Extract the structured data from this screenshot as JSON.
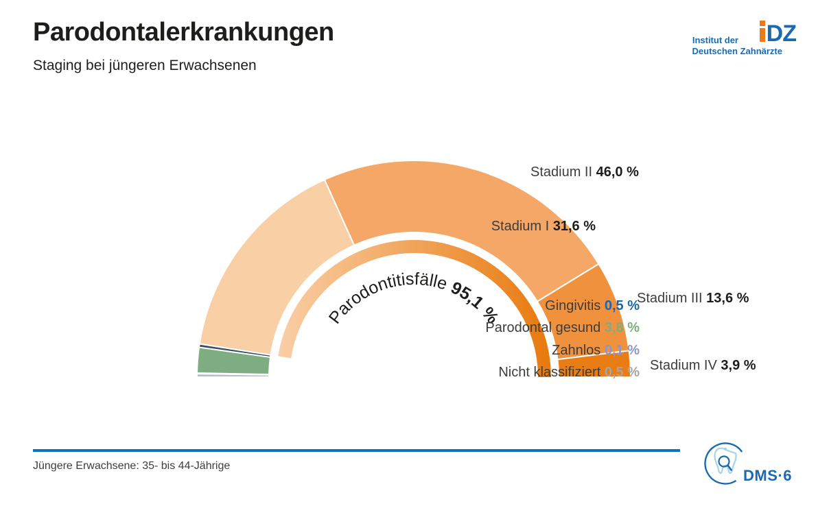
{
  "header": {
    "title": "Parodontalerkrankungen",
    "subtitle": "Staging bei jüngeren Erwachsenen"
  },
  "logo_idz": {
    "line1": "Institut der",
    "line2": "Deutschen Zahnärzte",
    "mark_dz": "DZ",
    "blue": "#1a6ab2",
    "orange": "#ec7a19"
  },
  "chart_data": {
    "type": "pie",
    "variant": "semicircle-donut",
    "unit": "%",
    "title": "Staging bei jüngeren Erwachsenen",
    "segments": [
      {
        "key": "nicht-klassifiziert",
        "label": "Nicht klassifiziert",
        "value": 0.5,
        "display_value": "0,5 %",
        "color": "#b9bccf",
        "value_color": "#aca39f",
        "parodontitis": false
      },
      {
        "key": "zahnlos",
        "label": "Zahnlos",
        "value": 0.1,
        "display_value": "0,1 %",
        "color": "#8e96c6",
        "value_color": "#8e96c6",
        "parodontitis": false
      },
      {
        "key": "parodontal-gesund",
        "label": "Parodontal gesund",
        "value": 3.8,
        "display_value": "3,8 %",
        "color": "#7dad80",
        "value_color": "#7dad80",
        "parodontitis": false
      },
      {
        "key": "gingivitis",
        "label": "Gingivitis",
        "value": 0.5,
        "display_value": "0,5 %",
        "color": "#3b5062",
        "value_color": "#1a65ad",
        "parodontitis": false
      },
      {
        "key": "stadium-i",
        "label": "Stadium I",
        "value": 31.6,
        "display_value": "31,6 %",
        "color": "#f9cfa6",
        "value_color": "#1d1d1b",
        "parodontitis": true
      },
      {
        "key": "stadium-ii",
        "label": "Stadium II",
        "value": 46.0,
        "display_value": "46,0 %",
        "color": "#f5a768",
        "value_color": "#1d1d1b",
        "parodontitis": true
      },
      {
        "key": "stadium-iii",
        "label": "Stadium III",
        "value": 13.6,
        "display_value": "13,6 %",
        "color": "#f0913d",
        "value_color": "#1d1d1b",
        "parodontitis": true
      },
      {
        "key": "stadium-iv",
        "label": "Stadium IV",
        "value": 3.9,
        "display_value": "3,9 %",
        "color": "#e97d13",
        "value_color": "#1d1d1b",
        "parodontitis": true
      }
    ],
    "inner_arc": {
      "label": "Parodontitisfälle",
      "value": 95.1,
      "display_value": "95,1 %",
      "gradient": [
        "#f9cfa6",
        "#e8790d"
      ],
      "text_color": "#1d1d1b"
    }
  },
  "footer": {
    "note": "Jüngere Erwachsene: 35- bis 44-Jährige",
    "line_color": "#1173bc"
  },
  "logo_dms": {
    "text": "DMS·6",
    "blue": "#1a6ab2",
    "tooth_blue": "#a7d3e2"
  }
}
